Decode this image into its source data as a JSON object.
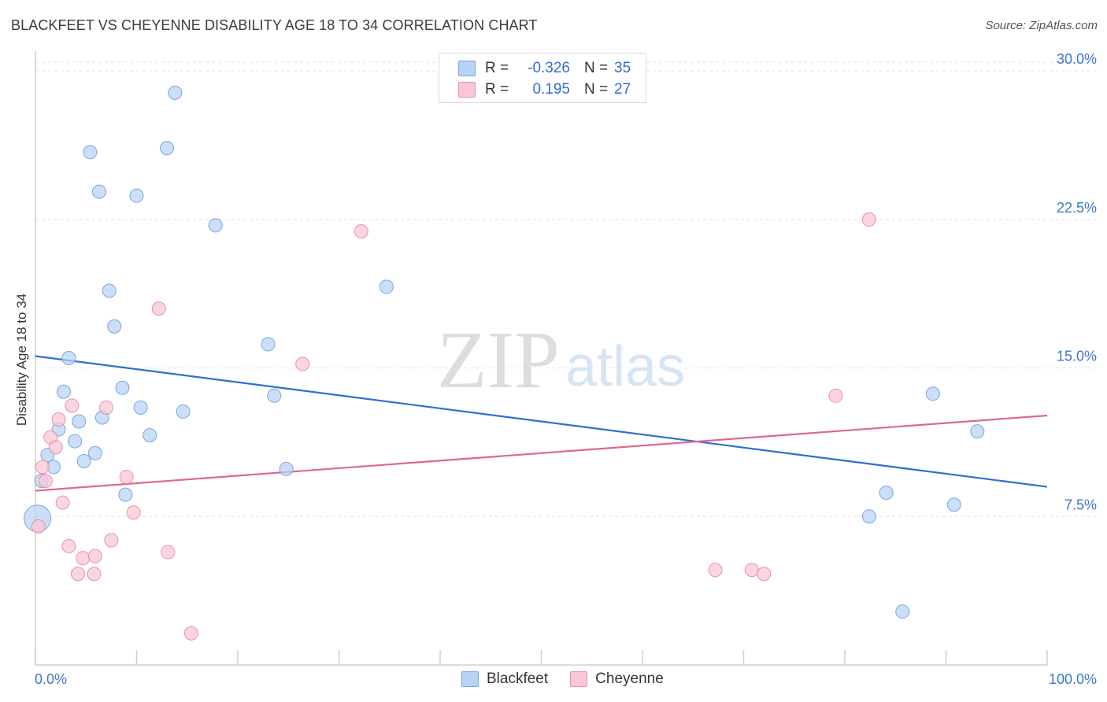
{
  "header": {
    "title": "BLACKFEET VS CHEYENNE DISABILITY AGE 18 TO 34 CORRELATION CHART",
    "source": "Source: ZipAtlas.com"
  },
  "colors": {
    "blackfeet_fill": "#b7d3f5",
    "blackfeet_stroke": "#7aa6e0",
    "blackfeet_line": "#2f6fd0",
    "cheyenne_fill": "#f9c6d5",
    "cheyenne_stroke": "#ea8fab",
    "cheyenne_line": "#e0668f",
    "axis_text": "#3b78c9",
    "grid": "#e2e2e2"
  },
  "legend": {
    "rows": [
      {
        "r_label": "R =",
        "r_value": "-0.326",
        "n_label": "N =",
        "n_value": "35"
      },
      {
        "r_label": "R =",
        "r_value": "0.195",
        "n_label": "N =",
        "n_value": "27"
      }
    ],
    "series_names": [
      "Blackfeet",
      "Cheyenne"
    ]
  },
  "watermark": {
    "zip": "ZIP",
    "atlas": "atlas"
  },
  "chart_data": {
    "type": "scatter",
    "title": "BLACKFEET VS CHEYENNE DISABILITY AGE 18 TO 34 CORRELATION CHART",
    "xlabel": "",
    "ylabel": "Disability Age 18 to 34",
    "xlim": [
      0,
      100
    ],
    "ylim": [
      0,
      31
    ],
    "x_tick_labels": [
      "0.0%",
      "100.0%"
    ],
    "y_ticks": [
      7.5,
      15.0,
      22.5,
      30.0
    ],
    "y_tick_labels": [
      "7.5%",
      "15.0%",
      "22.5%",
      "30.0%"
    ],
    "series": [
      {
        "name": "Blackfeet",
        "r": -0.326,
        "n": 35,
        "trend": {
          "x": [
            0,
            100
          ],
          "y": [
            15.6,
            9.0
          ]
        },
        "points": [
          {
            "x": 0.2,
            "y": 7.4,
            "big": true
          },
          {
            "x": 0.6,
            "y": 9.3
          },
          {
            "x": 1.2,
            "y": 10.6
          },
          {
            "x": 1.8,
            "y": 10.0
          },
          {
            "x": 2.3,
            "y": 11.9
          },
          {
            "x": 2.8,
            "y": 13.8
          },
          {
            "x": 3.3,
            "y": 15.5
          },
          {
            "x": 3.9,
            "y": 11.3
          },
          {
            "x": 4.3,
            "y": 12.3
          },
          {
            "x": 4.8,
            "y": 10.3
          },
          {
            "x": 5.4,
            "y": 25.9
          },
          {
            "x": 5.9,
            "y": 10.7
          },
          {
            "x": 6.3,
            "y": 23.9
          },
          {
            "x": 6.6,
            "y": 12.5
          },
          {
            "x": 7.3,
            "y": 18.9
          },
          {
            "x": 7.8,
            "y": 17.1
          },
          {
            "x": 8.6,
            "y": 14.0
          },
          {
            "x": 8.9,
            "y": 8.6
          },
          {
            "x": 10.0,
            "y": 23.7
          },
          {
            "x": 10.4,
            "y": 13.0
          },
          {
            "x": 11.3,
            "y": 11.6
          },
          {
            "x": 13.0,
            "y": 26.1
          },
          {
            "x": 13.8,
            "y": 28.9
          },
          {
            "x": 14.6,
            "y": 12.8
          },
          {
            "x": 17.8,
            "y": 22.2
          },
          {
            "x": 23.0,
            "y": 16.2
          },
          {
            "x": 23.6,
            "y": 13.6
          },
          {
            "x": 24.8,
            "y": 9.9
          },
          {
            "x": 34.7,
            "y": 19.1
          },
          {
            "x": 82.4,
            "y": 7.5
          },
          {
            "x": 84.1,
            "y": 8.7
          },
          {
            "x": 85.7,
            "y": 2.7
          },
          {
            "x": 88.7,
            "y": 13.7
          },
          {
            "x": 90.8,
            "y": 8.1
          },
          {
            "x": 93.1,
            "y": 11.8
          }
        ]
      },
      {
        "name": "Cheyenne",
        "r": 0.195,
        "n": 27,
        "trend": {
          "x": [
            0,
            100
          ],
          "y": [
            8.8,
            12.6
          ]
        },
        "points": [
          {
            "x": 0.3,
            "y": 7.0
          },
          {
            "x": 0.7,
            "y": 10.0
          },
          {
            "x": 1.0,
            "y": 9.3
          },
          {
            "x": 1.5,
            "y": 11.5
          },
          {
            "x": 2.0,
            "y": 11.0
          },
          {
            "x": 2.3,
            "y": 12.4
          },
          {
            "x": 2.7,
            "y": 8.2
          },
          {
            "x": 3.3,
            "y": 6.0
          },
          {
            "x": 3.6,
            "y": 13.1
          },
          {
            "x": 4.2,
            "y": 4.6
          },
          {
            "x": 4.7,
            "y": 5.4
          },
          {
            "x": 5.8,
            "y": 4.6
          },
          {
            "x": 5.9,
            "y": 5.5
          },
          {
            "x": 7.0,
            "y": 13.0
          },
          {
            "x": 7.5,
            "y": 6.3
          },
          {
            "x": 9.0,
            "y": 9.5
          },
          {
            "x": 9.7,
            "y": 7.7
          },
          {
            "x": 12.2,
            "y": 18.0
          },
          {
            "x": 13.1,
            "y": 5.7
          },
          {
            "x": 15.4,
            "y": 1.6
          },
          {
            "x": 26.4,
            "y": 15.2
          },
          {
            "x": 32.2,
            "y": 21.9
          },
          {
            "x": 67.2,
            "y": 4.8
          },
          {
            "x": 70.8,
            "y": 4.8
          },
          {
            "x": 72.0,
            "y": 4.6
          },
          {
            "x": 79.1,
            "y": 13.6
          },
          {
            "x": 82.4,
            "y": 22.5
          }
        ]
      }
    ]
  }
}
